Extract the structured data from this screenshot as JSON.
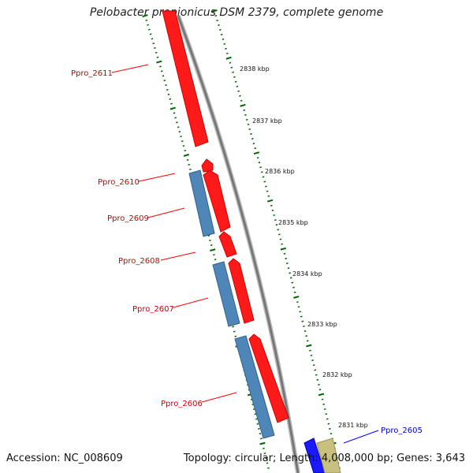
{
  "title": "Pelobacter propionicus DSM 2379, complete genome",
  "footer": {
    "accession": "Accession: NC_008609",
    "summary": "Topology: circular; Length: 4,008,000 bp; Genes: 3,643"
  },
  "colors": {
    "forward_gene": "#ff0000",
    "reverse_gene": "#4682b4",
    "other_forward": "#0000ff",
    "other_reverse": "#bdb76b",
    "backbone": "#808080",
    "tick": "#006400",
    "label_red": "#cc0000",
    "label_blue": "#0000cc"
  },
  "scale_ticks": [
    "2838 kbp",
    "2837 kbp",
    "2836 kbp",
    "2835 kbp",
    "2834 kbp",
    "2833 kbp",
    "2832 kbp",
    "2831 kbp"
  ],
  "gene_labels": [
    "Ppro_2611",
    "Ppro_2610",
    "Ppro_2609",
    "Ppro_2608",
    "Ppro_2607",
    "Ppro_2606",
    "Ppro_2605"
  ]
}
